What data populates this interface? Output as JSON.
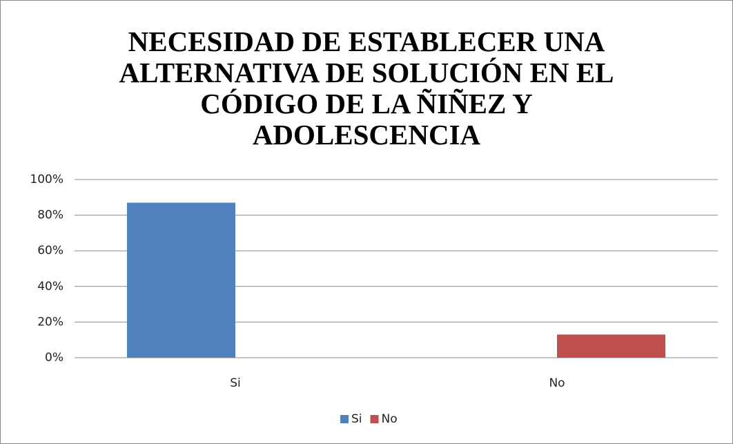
{
  "chart_data": {
    "type": "bar",
    "title": "NECESIDAD DE ESTABLECER UNA ALTERNATIVA DE SOLUCIÓN EN EL CÓDIGO DE LA ÑIÑEZ Y ADOLESCENCIA",
    "categories": [
      "Si",
      "No"
    ],
    "series": [
      {
        "name": "Si",
        "color": "#4f81bd",
        "values": [
          87,
          0
        ]
      },
      {
        "name": "No",
        "color": "#c0504d",
        "values": [
          0,
          13
        ]
      }
    ],
    "ylim": [
      0,
      100
    ],
    "yticks": [
      {
        "value": 0,
        "label": "0%"
      },
      {
        "value": 20,
        "label": "20%"
      },
      {
        "value": 40,
        "label": "40%"
      },
      {
        "value": 60,
        "label": "60%"
      },
      {
        "value": 80,
        "label": "80%"
      },
      {
        "value": 100,
        "label": "100%"
      }
    ],
    "grid": true,
    "legend": "bottom"
  }
}
